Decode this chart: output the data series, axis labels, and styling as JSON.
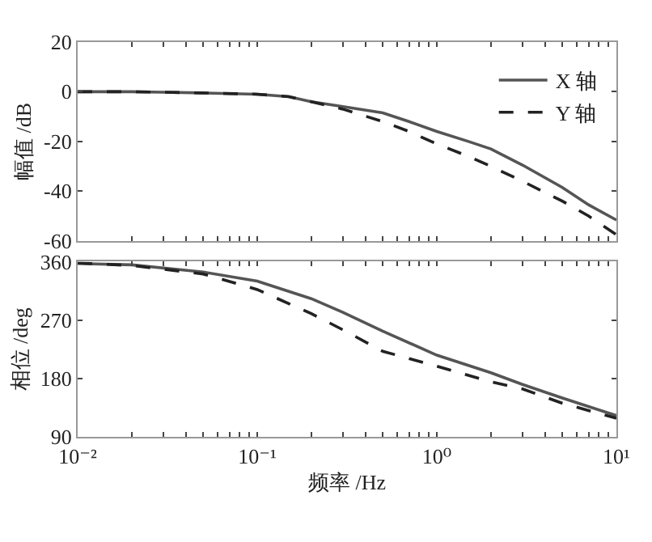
{
  "chart_data": [
    {
      "type": "line",
      "ylabel": "幅值 /dB",
      "log": "x",
      "legend": "top right",
      "tick_labels": "y",
      "marker": "none",
      "x": [
        0.01,
        0.02,
        0.03,
        0.05,
        0.1,
        0.15,
        0.2,
        0.3,
        0.5,
        0.7,
        1,
        1.5,
        2,
        3,
        5,
        7,
        10
      ],
      "series": [
        {
          "name": "X 轴",
          "color": "#555555",
          "line_style": "solid",
          "values": [
            0,
            0,
            -0.2,
            -0.5,
            -1,
            -2,
            -4,
            -6,
            -8.5,
            -12,
            -16,
            -20,
            -23,
            -29.5,
            -38.5,
            -45.5,
            -51.6
          ]
        },
        {
          "name": "Y 轴",
          "color": "#222222",
          "line_style": "dashed",
          "values": [
            0,
            0,
            -0.2,
            -0.5,
            -1,
            -2,
            -4,
            -7,
            -12,
            -16,
            -21,
            -26,
            -30,
            -36,
            -44,
            -50,
            -57.5
          ]
        }
      ],
      "xlim": [
        0.01,
        10
      ],
      "xticks": [
        {
          "value": 0.01,
          "label": null
        },
        {
          "value": 0.02,
          "label": null
        },
        {
          "value": 0.03,
          "label": null
        },
        {
          "value": 0.04,
          "label": null
        },
        {
          "value": 0.05,
          "label": null
        },
        {
          "value": 0.06,
          "label": null
        },
        {
          "value": 0.07,
          "label": null
        },
        {
          "value": 0.08,
          "label": null
        },
        {
          "value": 0.09,
          "label": null
        },
        {
          "value": 0.1,
          "label": null
        },
        {
          "value": 0.2,
          "label": null
        },
        {
          "value": 0.3,
          "label": null
        },
        {
          "value": 0.4,
          "label": null
        },
        {
          "value": 0.5,
          "label": null
        },
        {
          "value": 0.6,
          "label": null
        },
        {
          "value": 0.7,
          "label": null
        },
        {
          "value": 0.8,
          "label": null
        },
        {
          "value": 0.9,
          "label": null
        },
        {
          "value": 1,
          "label": null
        },
        {
          "value": 2,
          "label": null
        },
        {
          "value": 3,
          "label": null
        },
        {
          "value": 4,
          "label": null
        },
        {
          "value": 5,
          "label": null
        },
        {
          "value": 6,
          "label": null
        },
        {
          "value": 7,
          "label": null
        },
        {
          "value": 8,
          "label": null
        },
        {
          "value": 9,
          "label": null
        },
        {
          "value": 10,
          "label": null
        }
      ],
      "ylim": [
        -60,
        20
      ],
      "yticks": [
        -60,
        -40,
        -20,
        0,
        20
      ]
    },
    {
      "type": "line",
      "xlabel": "频率 /Hz",
      "ylabel": "相位 /deg",
      "log": "x",
      "marker": "none",
      "x": [
        0.01,
        0.02,
        0.05,
        0.1,
        0.2,
        0.3,
        0.5,
        1,
        2,
        3,
        5,
        10
      ],
      "series": [
        {
          "color": "#555555",
          "line_style": "solid",
          "values": [
            357,
            355,
            344,
            330,
            303,
            282,
            253,
            216,
            189,
            171,
            150,
            123
          ]
        },
        {
          "color": "#222222",
          "line_style": "dashed",
          "values": [
            358,
            354,
            341,
            317,
            280,
            255,
            222,
            199,
            175,
            164,
            142,
            119
          ]
        }
      ],
      "xlim": [
        0.01,
        10
      ],
      "xticks": [
        {
          "value": 0.01,
          "label": "10⁻²"
        },
        {
          "value": 0.02,
          "label": null
        },
        {
          "value": 0.03,
          "label": null
        },
        {
          "value": 0.04,
          "label": null
        },
        {
          "value": 0.05,
          "label": null
        },
        {
          "value": 0.06,
          "label": null
        },
        {
          "value": 0.07,
          "label": null
        },
        {
          "value": 0.08,
          "label": null
        },
        {
          "value": 0.09,
          "label": null
        },
        {
          "value": 0.1,
          "label": "10⁻¹"
        },
        {
          "value": 0.2,
          "label": null
        },
        {
          "value": 0.3,
          "label": null
        },
        {
          "value": 0.4,
          "label": null
        },
        {
          "value": 0.5,
          "label": null
        },
        {
          "value": 0.6,
          "label": null
        },
        {
          "value": 0.7,
          "label": null
        },
        {
          "value": 0.8,
          "label": null
        },
        {
          "value": 0.9,
          "label": null
        },
        {
          "value": 1,
          "label": "10⁰"
        },
        {
          "value": 2,
          "label": null
        },
        {
          "value": 3,
          "label": null
        },
        {
          "value": 4,
          "label": null
        },
        {
          "value": 5,
          "label": null
        },
        {
          "value": 6,
          "label": null
        },
        {
          "value": 7,
          "label": null
        },
        {
          "value": 8,
          "label": null
        },
        {
          "value": 9,
          "label": null
        },
        {
          "value": 10,
          "label": "10¹"
        }
      ],
      "ylim": [
        90,
        360
      ],
      "yticks": [
        90,
        180,
        270,
        360
      ]
    }
  ]
}
